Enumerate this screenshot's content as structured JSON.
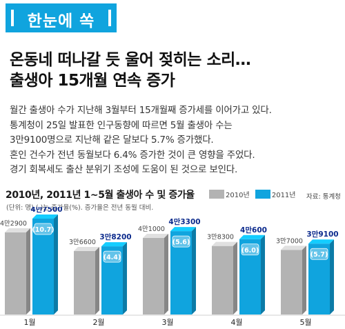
{
  "banner": {
    "title": "한눈에 쏙"
  },
  "headline": {
    "line1": "온동네 떠나갈 듯 울어 젖히는 소리…",
    "line2": "출생아 15개월 연속 증가"
  },
  "article": {
    "lines": [
      "월간 출생아 수가 지난해 3월부터 15개월째 증가세를 이어가고 있다.",
      "통계청이 25일 발표한 인구동향에 따르면 5월 출생아 수는",
      "3만9100명으로 지난해 같은 달보다 5.7% 증가했다.",
      "혼인 건수가 전년 동월보다 6.4% 증가한 것이 큰 영향을 주었다.",
      "경기 회복세도 출산 분위기 조성에 도움이 된 것으로 보인다."
    ]
  },
  "chart_header": {
    "title": "2010년, 2011년 1~5월 출생아 수 및 증가율",
    "unit_note": "(단위: 명) ( )는 증가율(%). 증가율은 전년 동월 대비.",
    "source": "자료: 통계청"
  },
  "colors": {
    "accent": "#10a4de",
    "gray_bar": "#b3b3b3",
    "blue_text": "#0b2a8c"
  },
  "chart_data": {
    "type": "bar",
    "categories": [
      "1월",
      "2월",
      "3월",
      "4월",
      "5월"
    ],
    "series": [
      {
        "name": "2010년",
        "values": [
          42900,
          36600,
          41000,
          38300,
          37000
        ],
        "labels": [
          "4만2900",
          "3만6600",
          "4만1000",
          "3만8300",
          "3만7000"
        ]
      },
      {
        "name": "2011년",
        "values": [
          47500,
          38200,
          43300,
          40600,
          39100
        ],
        "labels": [
          "4만7500",
          "3만8200",
          "4만3300",
          "4만600",
          "3만9100"
        ],
        "growth_rates": [
          "(10.7)",
          "(4.4)",
          "(5.6)",
          "(6.0)",
          "(5.7)"
        ]
      }
    ],
    "legend": "top-right"
  }
}
